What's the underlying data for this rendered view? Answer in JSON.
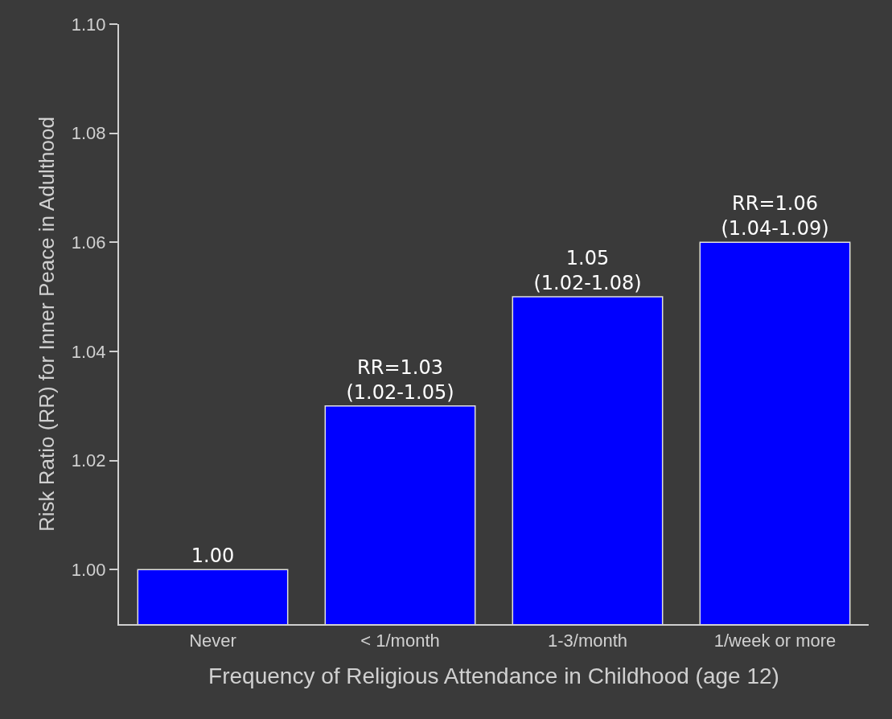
{
  "chart_data": {
    "type": "bar",
    "xlabel": "Frequency of Religious Attendance in Childhood (age 12)",
    "ylabel": "Risk Ratio (RR) for Inner Peace in Adulthood",
    "categories": [
      "Never",
      "< 1/month",
      "1-3/month",
      "1/week or more"
    ],
    "values": [
      1.0,
      1.03,
      1.05,
      1.06
    ],
    "value_labels": [
      "1.00",
      "RR=1.03\n(1.02-1.05)",
      "1.05\n(1.02-1.08)",
      "RR=1.06\n(1.04-1.09)"
    ],
    "color": "#0000ff",
    "ylim": [
      0.99,
      1.1
    ],
    "yticks": [
      {
        "value": 1.0,
        "label": "1.00"
      },
      {
        "value": 1.02,
        "label": "1.02"
      },
      {
        "value": 1.04,
        "label": "1.04"
      },
      {
        "value": 1.06,
        "label": "1.06"
      },
      {
        "value": 1.08,
        "label": "1.08"
      },
      {
        "value": 1.1,
        "label": "1.10"
      }
    ],
    "grid": false,
    "legend": false
  }
}
